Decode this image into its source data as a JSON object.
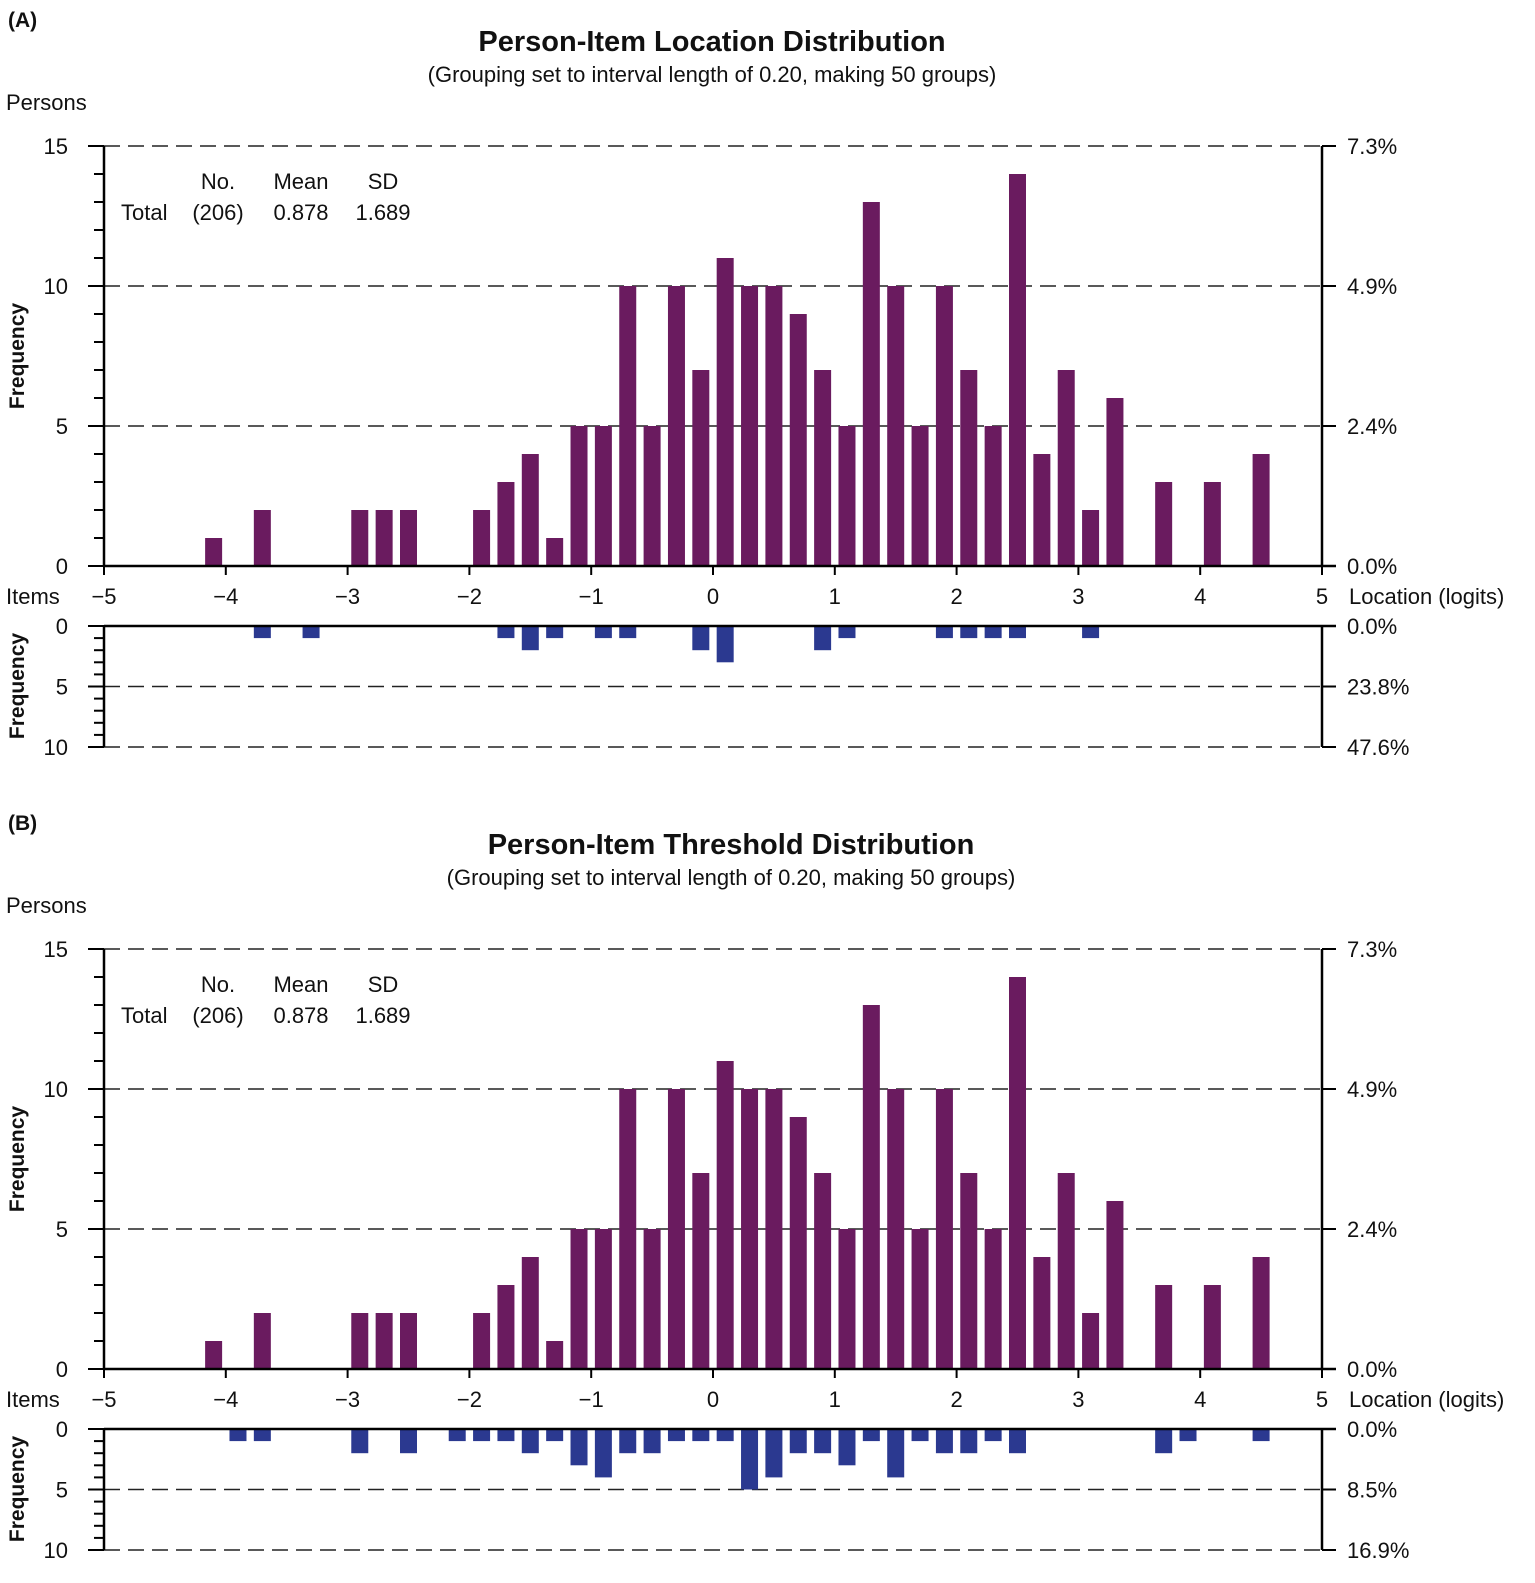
{
  "colors": {
    "person_bar": "#6a1b5f",
    "item_bar": "#2b3990"
  },
  "chart_data": [
    {
      "type": "bar",
      "panel_label": "(A)",
      "title": "Person-Item Location Distribution",
      "subtitle": "(Grouping set to interval length of 0.20, making 50 groups)",
      "persons_label": "Persons",
      "items_label": "Items",
      "xlabel": "Location (logits)",
      "ylabel": "Frequency",
      "xlim": [
        -5,
        5
      ],
      "xticks": [
        "−5",
        "−4",
        "−3",
        "−2",
        "−1",
        "0",
        "1",
        "2",
        "3",
        "4",
        "5"
      ],
      "persons_ylim": [
        0,
        15
      ],
      "persons_yticks": [
        "0",
        "5",
        "10",
        "15"
      ],
      "persons_pct_ticks": [
        "0.0%",
        "2.4%",
        "4.9%",
        "7.3%"
      ],
      "items_ylim": [
        0,
        10
      ],
      "items_yticks": [
        "0",
        "5",
        "10"
      ],
      "items_pct_ticks": [
        "0.0%",
        "23.8%",
        "47.6%"
      ],
      "stats": {
        "headers": [
          "No.",
          "Mean",
          "SD"
        ],
        "row_label": "Total",
        "values": [
          "(206)",
          "0.878",
          "1.689"
        ]
      },
      "persons": [
        {
          "x": -4.1,
          "y": 1
        },
        {
          "x": -3.7,
          "y": 2
        },
        {
          "x": -2.9,
          "y": 2
        },
        {
          "x": -2.7,
          "y": 2
        },
        {
          "x": -2.5,
          "y": 2
        },
        {
          "x": -1.9,
          "y": 2
        },
        {
          "x": -1.7,
          "y": 3
        },
        {
          "x": -1.5,
          "y": 4
        },
        {
          "x": -1.3,
          "y": 1
        },
        {
          "x": -1.1,
          "y": 5
        },
        {
          "x": -0.9,
          "y": 5
        },
        {
          "x": -0.7,
          "y": 10
        },
        {
          "x": -0.5,
          "y": 5
        },
        {
          "x": -0.3,
          "y": 10
        },
        {
          "x": -0.1,
          "y": 7
        },
        {
          "x": 0.1,
          "y": 11
        },
        {
          "x": 0.3,
          "y": 10
        },
        {
          "x": 0.5,
          "y": 10
        },
        {
          "x": 0.7,
          "y": 9
        },
        {
          "x": 0.9,
          "y": 7
        },
        {
          "x": 1.1,
          "y": 5
        },
        {
          "x": 1.3,
          "y": 13
        },
        {
          "x": 1.5,
          "y": 10
        },
        {
          "x": 1.7,
          "y": 5
        },
        {
          "x": 1.9,
          "y": 10
        },
        {
          "x": 2.1,
          "y": 7
        },
        {
          "x": 2.3,
          "y": 5
        },
        {
          "x": 2.5,
          "y": 14
        },
        {
          "x": 2.7,
          "y": 4
        },
        {
          "x": 2.9,
          "y": 7
        },
        {
          "x": 3.1,
          "y": 2
        },
        {
          "x": 3.3,
          "y": 6
        },
        {
          "x": 3.7,
          "y": 3
        },
        {
          "x": 4.1,
          "y": 3
        },
        {
          "x": 4.5,
          "y": 4
        }
      ],
      "items": [
        {
          "x": -3.7,
          "y": 1
        },
        {
          "x": -3.3,
          "y": 1
        },
        {
          "x": -1.7,
          "y": 1
        },
        {
          "x": -1.5,
          "y": 2
        },
        {
          "x": -1.3,
          "y": 1
        },
        {
          "x": -0.9,
          "y": 1
        },
        {
          "x": -0.7,
          "y": 1
        },
        {
          "x": -0.1,
          "y": 2
        },
        {
          "x": 0.1,
          "y": 3
        },
        {
          "x": 0.9,
          "y": 2
        },
        {
          "x": 1.1,
          "y": 1
        },
        {
          "x": 1.9,
          "y": 1
        },
        {
          "x": 2.1,
          "y": 1
        },
        {
          "x": 2.3,
          "y": 1
        },
        {
          "x": 2.5,
          "y": 1
        },
        {
          "x": 3.1,
          "y": 1
        }
      ]
    },
    {
      "type": "bar",
      "panel_label": "(B)",
      "title": "Person-Item Threshold Distribution",
      "subtitle": "(Grouping set to interval length of 0.20, making 50 groups)",
      "persons_label": "Persons",
      "items_label": "Items",
      "xlabel": "Location (logits)",
      "ylabel": "Frequency",
      "xlim": [
        -5,
        5
      ],
      "xticks": [
        "−5",
        "−4",
        "−3",
        "−2",
        "−1",
        "0",
        "1",
        "2",
        "3",
        "4",
        "5"
      ],
      "persons_ylim": [
        0,
        15
      ],
      "persons_yticks": [
        "0",
        "5",
        "10",
        "15"
      ],
      "persons_pct_ticks": [
        "0.0%",
        "2.4%",
        "4.9%",
        "7.3%"
      ],
      "items_ylim": [
        0,
        10
      ],
      "items_yticks": [
        "0",
        "5",
        "10"
      ],
      "items_pct_ticks": [
        "0.0%",
        "8.5%",
        "16.9%"
      ],
      "stats": {
        "headers": [
          "No.",
          "Mean",
          "SD"
        ],
        "row_label": "Total",
        "values": [
          "(206)",
          "0.878",
          "1.689"
        ]
      },
      "persons": [
        {
          "x": -4.1,
          "y": 1
        },
        {
          "x": -3.7,
          "y": 2
        },
        {
          "x": -2.9,
          "y": 2
        },
        {
          "x": -2.7,
          "y": 2
        },
        {
          "x": -2.5,
          "y": 2
        },
        {
          "x": -1.9,
          "y": 2
        },
        {
          "x": -1.7,
          "y": 3
        },
        {
          "x": -1.5,
          "y": 4
        },
        {
          "x": -1.3,
          "y": 1
        },
        {
          "x": -1.1,
          "y": 5
        },
        {
          "x": -0.9,
          "y": 5
        },
        {
          "x": -0.7,
          "y": 10
        },
        {
          "x": -0.5,
          "y": 5
        },
        {
          "x": -0.3,
          "y": 10
        },
        {
          "x": -0.1,
          "y": 7
        },
        {
          "x": 0.1,
          "y": 11
        },
        {
          "x": 0.3,
          "y": 10
        },
        {
          "x": 0.5,
          "y": 10
        },
        {
          "x": 0.7,
          "y": 9
        },
        {
          "x": 0.9,
          "y": 7
        },
        {
          "x": 1.1,
          "y": 5
        },
        {
          "x": 1.3,
          "y": 13
        },
        {
          "x": 1.5,
          "y": 10
        },
        {
          "x": 1.7,
          "y": 5
        },
        {
          "x": 1.9,
          "y": 10
        },
        {
          "x": 2.1,
          "y": 7
        },
        {
          "x": 2.3,
          "y": 5
        },
        {
          "x": 2.5,
          "y": 14
        },
        {
          "x": 2.7,
          "y": 4
        },
        {
          "x": 2.9,
          "y": 7
        },
        {
          "x": 3.1,
          "y": 2
        },
        {
          "x": 3.3,
          "y": 6
        },
        {
          "x": 3.7,
          "y": 3
        },
        {
          "x": 4.1,
          "y": 3
        },
        {
          "x": 4.5,
          "y": 4
        }
      ],
      "items": [
        {
          "x": -3.9,
          "y": 1
        },
        {
          "x": -3.7,
          "y": 1
        },
        {
          "x": -2.9,
          "y": 2
        },
        {
          "x": -2.5,
          "y": 2
        },
        {
          "x": -2.1,
          "y": 1
        },
        {
          "x": -1.9,
          "y": 1
        },
        {
          "x": -1.7,
          "y": 1
        },
        {
          "x": -1.5,
          "y": 2
        },
        {
          "x": -1.3,
          "y": 1
        },
        {
          "x": -1.1,
          "y": 3
        },
        {
          "x": -0.9,
          "y": 4
        },
        {
          "x": -0.7,
          "y": 2
        },
        {
          "x": -0.5,
          "y": 2
        },
        {
          "x": -0.3,
          "y": 1
        },
        {
          "x": -0.1,
          "y": 1
        },
        {
          "x": 0.1,
          "y": 1
        },
        {
          "x": 0.3,
          "y": 5
        },
        {
          "x": 0.5,
          "y": 4
        },
        {
          "x": 0.7,
          "y": 2
        },
        {
          "x": 0.9,
          "y": 2
        },
        {
          "x": 1.1,
          "y": 3
        },
        {
          "x": 1.3,
          "y": 1
        },
        {
          "x": 1.5,
          "y": 4
        },
        {
          "x": 1.7,
          "y": 1
        },
        {
          "x": 1.9,
          "y": 2
        },
        {
          "x": 2.1,
          "y": 2
        },
        {
          "x": 2.3,
          "y": 1
        },
        {
          "x": 2.5,
          "y": 2
        },
        {
          "x": 3.7,
          "y": 2
        },
        {
          "x": 3.9,
          "y": 1
        },
        {
          "x": 4.5,
          "y": 1
        }
      ]
    }
  ]
}
